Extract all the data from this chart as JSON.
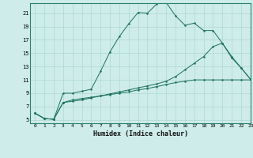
{
  "xlabel": "Humidex (Indice chaleur)",
  "background_color": "#ceecea",
  "grid_color": "#aed8d4",
  "line_color": "#1a7060",
  "xlim": [
    -0.5,
    23
  ],
  "ylim": [
    4.5,
    22.5
  ],
  "yticks": [
    5,
    7,
    9,
    11,
    13,
    15,
    17,
    19,
    21
  ],
  "xticks": [
    0,
    1,
    2,
    3,
    4,
    5,
    6,
    7,
    8,
    9,
    10,
    11,
    12,
    13,
    14,
    15,
    16,
    17,
    18,
    19,
    20,
    21,
    22,
    23
  ],
  "series": [
    [
      6,
      5.2,
      5.1,
      9.0,
      9.0,
      9.3,
      9.6,
      12.3,
      15.2,
      17.5,
      19.4,
      21.1,
      21.0,
      22.4,
      22.6,
      20.6,
      19.2,
      19.5,
      18.4,
      18.4,
      16.5,
      14.3,
      12.8,
      11.1
    ],
    [
      6,
      5.2,
      5.1,
      7.6,
      8.0,
      8.2,
      8.4,
      8.6,
      8.8,
      9.0,
      9.2,
      9.5,
      9.7,
      10.0,
      10.3,
      10.6,
      10.8,
      11.0,
      11.0,
      11.0,
      11.0,
      11.0,
      11.0,
      11.0
    ],
    [
      6,
      5.2,
      5.1,
      7.6,
      7.8,
      8.0,
      8.3,
      8.6,
      8.9,
      9.2,
      9.5,
      9.8,
      10.1,
      10.4,
      10.8,
      11.5,
      12.5,
      13.5,
      14.5,
      16.0,
      16.5,
      14.5,
      12.8,
      11.1
    ]
  ]
}
